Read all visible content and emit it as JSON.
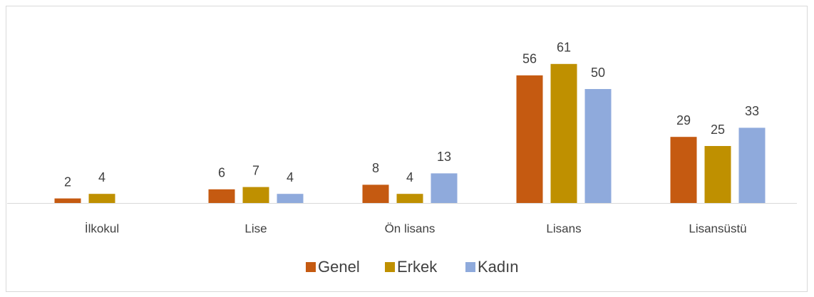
{
  "chart_data": {
    "type": "bar",
    "categories": [
      "İlkokul",
      "Lise",
      "Ön lisans",
      "Lisans",
      "Lisansüstü"
    ],
    "series": [
      {
        "name": "Genel",
        "color": "#c55a11",
        "values": [
          2,
          6,
          8,
          56,
          29
        ]
      },
      {
        "name": "Erkek",
        "color": "#bf9000",
        "values": [
          4,
          7,
          4,
          61,
          25
        ]
      },
      {
        "name": "Kadın",
        "color": "#8faadc",
        "values": [
          null,
          4,
          13,
          50,
          33
        ]
      }
    ],
    "legend": "bottom"
  }
}
